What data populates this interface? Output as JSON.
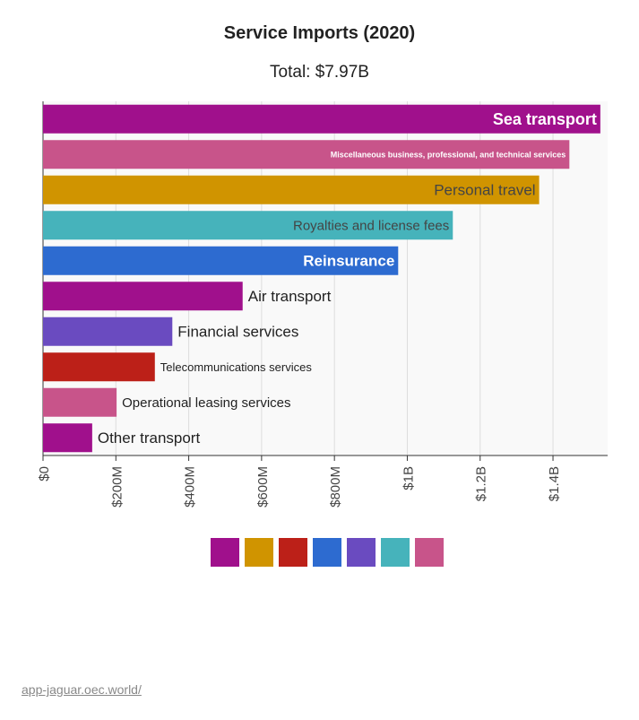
{
  "chart_data": {
    "type": "bar",
    "orientation": "horizontal",
    "title": "Service Imports (2020)",
    "subtitle": "Total: $7.97B",
    "categories": [
      "Sea transport",
      "Miscellaneous business, professional, and technical services",
      "Personal travel",
      "Royalties and license fees",
      "Reinsurance",
      "Air transport",
      "Financial services",
      "Telecommunications services",
      "Operational leasing services",
      "Other transport"
    ],
    "values": [
      1530000000,
      1445000000,
      1362000000,
      1125000000,
      975000000,
      548000000,
      355000000,
      307000000,
      202000000,
      135000000
    ],
    "colors": [
      "#a0108c",
      "#c8548a",
      "#d09400",
      "#46b3bb",
      "#2d6bd0",
      "#a0108c",
      "#6a4bc0",
      "#bc2018",
      "#c8548a",
      "#a0108c"
    ],
    "label_colors": [
      "#ffffff",
      "#ffffff",
      "#444444",
      "#444444",
      "#ffffff",
      "#222222",
      "#222222",
      "#222222",
      "#222222",
      "#222222"
    ],
    "xlim": [
      0,
      1550000000
    ],
    "x_ticks": [
      {
        "value": 0,
        "label": "$0"
      },
      {
        "value": 200000000,
        "label": "$200M"
      },
      {
        "value": 400000000,
        "label": "$400M"
      },
      {
        "value": 600000000,
        "label": "$600M"
      },
      {
        "value": 800000000,
        "label": "$800M"
      },
      {
        "value": 1000000000,
        "label": "$1B"
      },
      {
        "value": 1200000000,
        "label": "$1.2B"
      },
      {
        "value": 1400000000,
        "label": "$1.4B"
      }
    ],
    "grid": true,
    "legend": {
      "placement": "bottom",
      "colors": [
        "#a0108c",
        "#d09400",
        "#bc2018",
        "#2d6bd0",
        "#6a4bc0",
        "#46b3bb",
        "#c8548a"
      ]
    }
  },
  "source_link": "app-jaguar.oec.world/"
}
